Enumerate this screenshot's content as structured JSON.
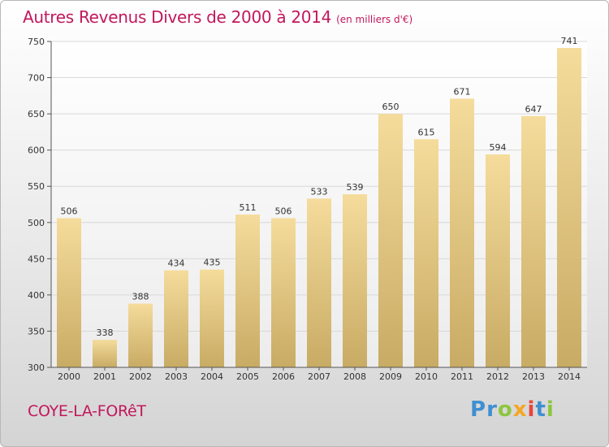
{
  "header": {
    "title": "Autres Revenus Divers de 2000 à 2014",
    "unit": "(en milliers d'€)"
  },
  "footer": {
    "town": "COYE-LA-FORêT",
    "logo_letters": [
      {
        "char": "P",
        "color": "#3f8fd2"
      },
      {
        "char": "r",
        "color": "#3f8fd2"
      },
      {
        "char": "o",
        "color": "#8cc63f"
      },
      {
        "char": "x",
        "color": "#f5a623"
      },
      {
        "char": "i",
        "color": "#e8453c"
      },
      {
        "char": "t",
        "color": "#3f8fd2"
      },
      {
        "char": "i",
        "color": "#8cc63f"
      }
    ]
  },
  "chart_data": {
    "type": "bar",
    "title": "Autres Revenus Divers de 2000 à 2014",
    "subtitle": "(en milliers d'€)",
    "xlabel": "",
    "ylabel": "",
    "categories": [
      "2000",
      "2001",
      "2002",
      "2003",
      "2004",
      "2005",
      "2006",
      "2007",
      "2008",
      "2009",
      "2010",
      "2011",
      "2012",
      "2013",
      "2014"
    ],
    "values": [
      506,
      338,
      388,
      434,
      435,
      511,
      506,
      533,
      539,
      650,
      615,
      671,
      594,
      647,
      741
    ],
    "ylim": [
      300,
      750
    ],
    "yticks": [
      300,
      350,
      400,
      450,
      500,
      550,
      600,
      650,
      700,
      750
    ],
    "grid": true,
    "legend": "none",
    "colors": {
      "bar_top": "#f5dc9c",
      "bar_bottom": "#c8ab64",
      "grid": "#d8d8d8",
      "axis": "#555555"
    }
  }
}
